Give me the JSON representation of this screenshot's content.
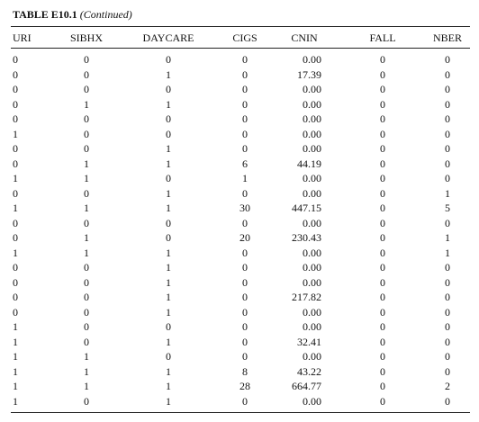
{
  "header": {
    "title": "TABLE E10.1",
    "subtitle": "(Continued)"
  },
  "table": {
    "columns": [
      "URI",
      "SIBHX",
      "DAYCARE",
      "CIGS",
      "CNIN",
      "FALL",
      "NBER"
    ],
    "rows": [
      [
        "0",
        "0",
        "0",
        "0",
        "0.00",
        "0",
        "0"
      ],
      [
        "0",
        "0",
        "1",
        "0",
        "17.39",
        "0",
        "0"
      ],
      [
        "0",
        "0",
        "0",
        "0",
        "0.00",
        "0",
        "0"
      ],
      [
        "0",
        "1",
        "1",
        "0",
        "0.00",
        "0",
        "0"
      ],
      [
        "0",
        "0",
        "0",
        "0",
        "0.00",
        "0",
        "0"
      ],
      [
        "1",
        "0",
        "0",
        "0",
        "0.00",
        "0",
        "0"
      ],
      [
        "0",
        "0",
        "1",
        "0",
        "0.00",
        "0",
        "0"
      ],
      [
        "0",
        "1",
        "1",
        "6",
        "44.19",
        "0",
        "0"
      ],
      [
        "1",
        "1",
        "0",
        "1",
        "0.00",
        "0",
        "0"
      ],
      [
        "0",
        "0",
        "1",
        "0",
        "0.00",
        "0",
        "1"
      ],
      [
        "1",
        "1",
        "1",
        "30",
        "447.15",
        "0",
        "5"
      ],
      [
        "0",
        "0",
        "0",
        "0",
        "0.00",
        "0",
        "0"
      ],
      [
        "0",
        "1",
        "0",
        "20",
        "230.43",
        "0",
        "1"
      ],
      [
        "1",
        "1",
        "1",
        "0",
        "0.00",
        "0",
        "1"
      ],
      [
        "0",
        "0",
        "1",
        "0",
        "0.00",
        "0",
        "0"
      ],
      [
        "0",
        "0",
        "1",
        "0",
        "0.00",
        "0",
        "0"
      ],
      [
        "0",
        "0",
        "1",
        "0",
        "217.82",
        "0",
        "0"
      ],
      [
        "0",
        "0",
        "1",
        "0",
        "0.00",
        "0",
        "0"
      ],
      [
        "1",
        "0",
        "0",
        "0",
        "0.00",
        "0",
        "0"
      ],
      [
        "1",
        "0",
        "1",
        "0",
        "32.41",
        "0",
        "0"
      ],
      [
        "1",
        "1",
        "0",
        "0",
        "0.00",
        "0",
        "0"
      ],
      [
        "1",
        "1",
        "1",
        "8",
        "43.22",
        "0",
        "0"
      ],
      [
        "1",
        "1",
        "1",
        "28",
        "664.77",
        "0",
        "2"
      ],
      [
        "1",
        "0",
        "1",
        "0",
        "0.00",
        "0",
        "0"
      ]
    ]
  }
}
